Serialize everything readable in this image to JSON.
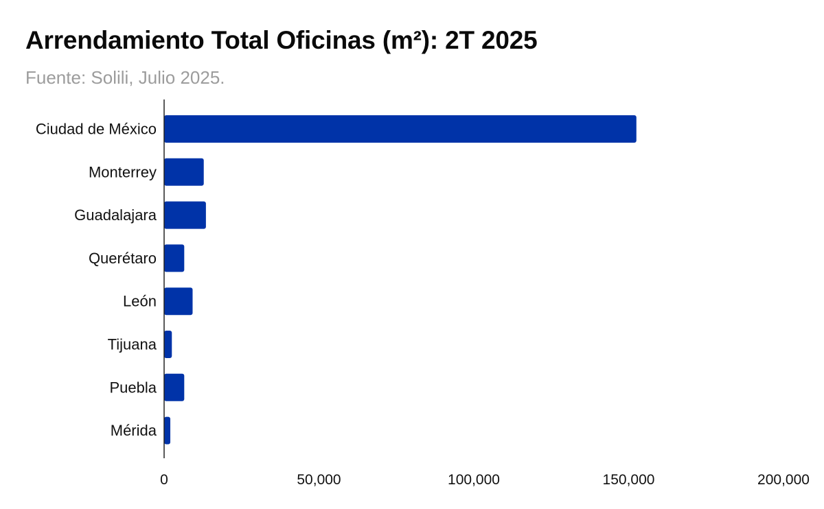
{
  "title": "Arrendamiento Total Oficinas (m²): 2T 2025",
  "subtitle": "Fuente: Solili, Julio 2025.",
  "colors": {
    "bar": "#0033a8",
    "axis": "#222222",
    "subtitle": "#9c9c9c"
  },
  "chart_data": {
    "type": "bar",
    "orientation": "horizontal",
    "categories": [
      "Ciudad de México",
      "Monterrey",
      "Guadalajara",
      "Querétaro",
      "León",
      "Tijuana",
      "Puebla",
      "Mérida"
    ],
    "values": [
      152500,
      12800,
      13500,
      6500,
      9200,
      2500,
      6500,
      2000
    ],
    "xlim": [
      0,
      200000
    ],
    "xticks": [
      0,
      50000,
      100000,
      150000,
      200000
    ],
    "xtick_labels": [
      "0",
      "50,000",
      "100,000",
      "150,000",
      "200,000"
    ],
    "grid": false,
    "legend": "none"
  }
}
